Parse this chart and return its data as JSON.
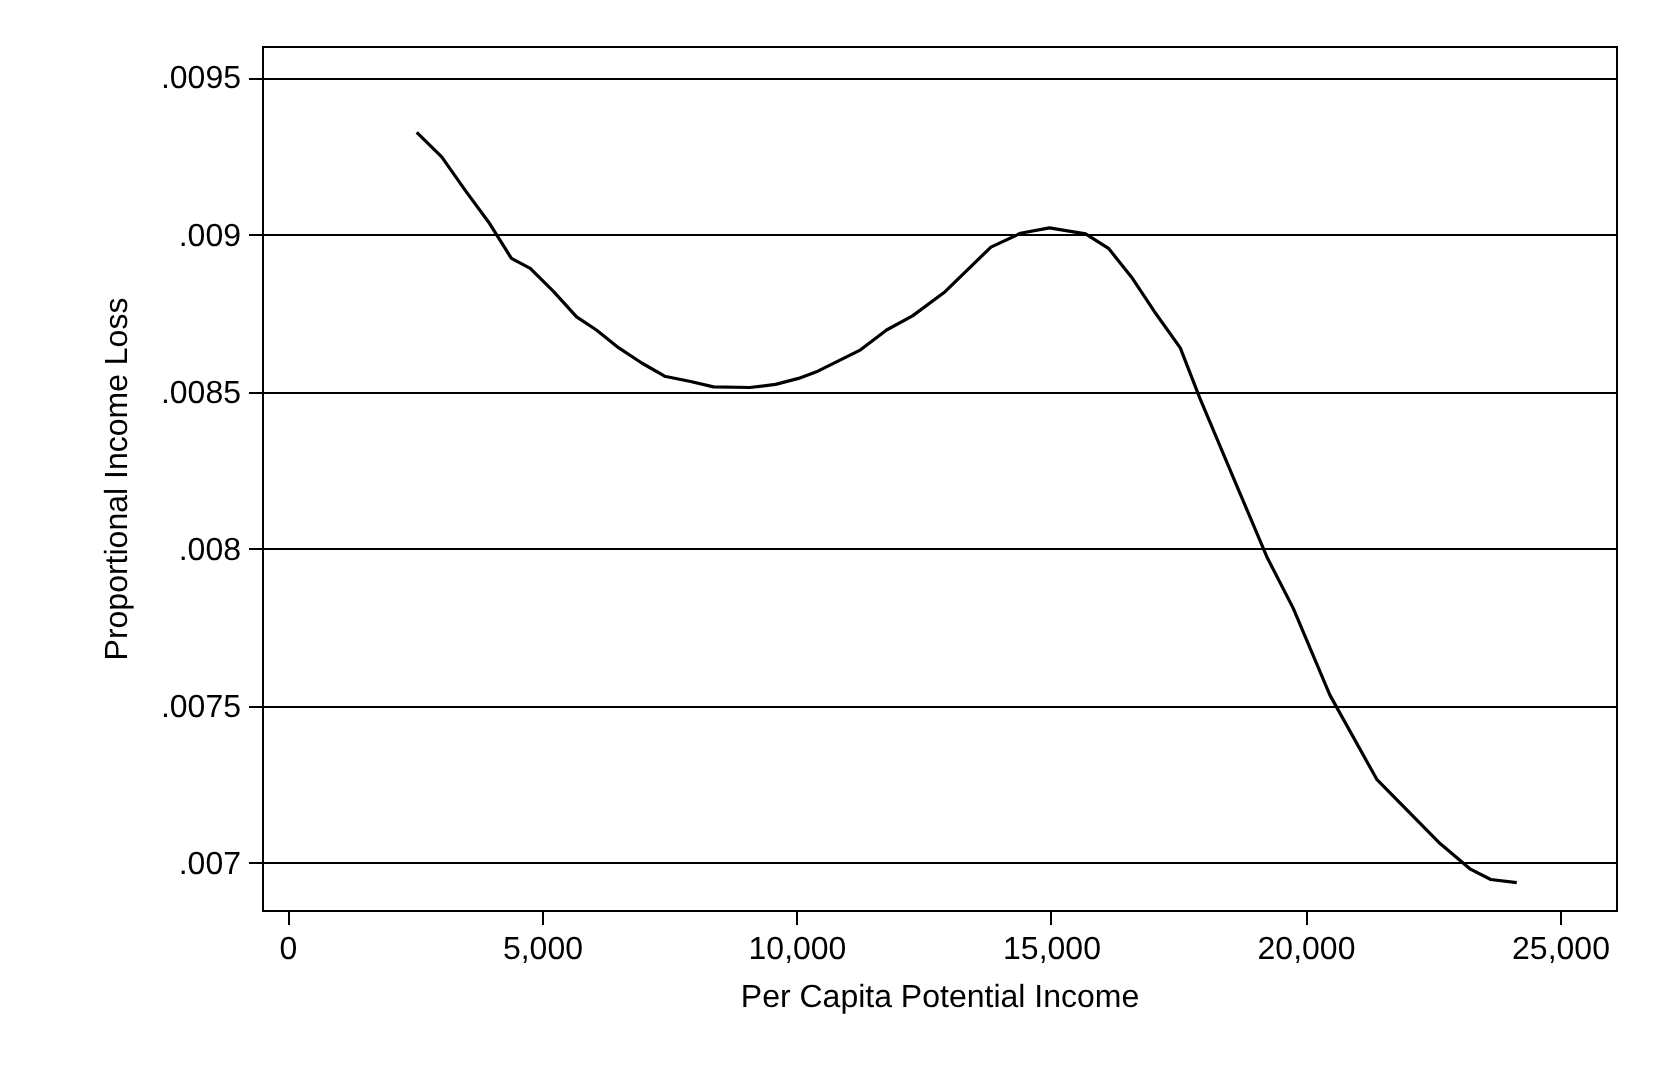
{
  "chart_data": {
    "type": "line",
    "xlabel": "Per Capita Potential Income",
    "ylabel": "Proportional Income Loss",
    "x": [
      2540,
      3030,
      3500,
      3950,
      4400,
      4770,
      5230,
      5680,
      6070,
      6510,
      6960,
      7410,
      7920,
      8370,
      9080,
      9590,
      10040,
      10420,
      11260,
      11770,
      12280,
      12920,
      13820,
      14400,
      14970,
      15680,
      16130,
      16580,
      17030,
      17540,
      17920,
      18690,
      19250,
      19760,
      20480,
      21400,
      22620,
      23230,
      23640,
      24150
    ],
    "series": [
      {
        "color": "#000000",
        "values": [
          0.009325,
          0.009247,
          0.009139,
          0.00904,
          0.008924,
          0.008892,
          0.008818,
          0.008738,
          0.008696,
          0.008639,
          0.008591,
          0.008549,
          0.008532,
          0.008515,
          0.008513,
          0.008523,
          0.008542,
          0.008565,
          0.008633,
          0.008696,
          0.008741,
          0.008818,
          0.00896,
          0.009004,
          0.009021,
          0.009002,
          0.008956,
          0.008865,
          0.008755,
          0.008639,
          0.008481,
          0.008185,
          0.007971,
          0.00781,
          0.007534,
          0.007266,
          0.007065,
          0.006981,
          0.006947,
          0.006937
        ]
      }
    ],
    "xlim": [
      -500,
      26100
    ],
    "ylim": [
      0.00685,
      0.0096
    ],
    "xticks": [
      {
        "value": 0,
        "label": "0"
      },
      {
        "value": 5000,
        "label": "5,000"
      },
      {
        "value": 10000,
        "label": "10,000"
      },
      {
        "value": 15000,
        "label": "15,000"
      },
      {
        "value": 20000,
        "label": "20,000"
      },
      {
        "value": 25000,
        "label": "25,000"
      }
    ],
    "yticks": [
      {
        "value": 0.007,
        "label": ".007"
      },
      {
        "value": 0.0075,
        "label": ".0075"
      },
      {
        "value": 0.008,
        "label": ".008"
      },
      {
        "value": 0.0085,
        "label": ".0085"
      },
      {
        "value": 0.009,
        "label": ".009"
      },
      {
        "value": 0.0095,
        "label": ".0095"
      }
    ],
    "grid": "y",
    "marker": "none",
    "line_style": "solid"
  }
}
